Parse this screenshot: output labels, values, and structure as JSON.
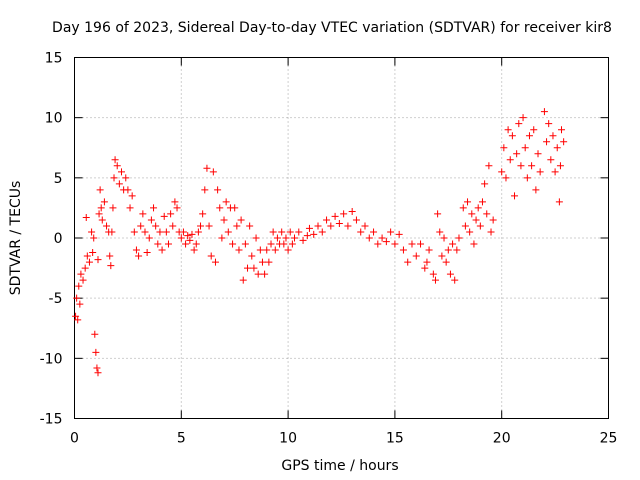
{
  "chart_data": {
    "type": "scatter",
    "title": "Day 196 of 2023, Sidereal Day-to-day VTEC variation (SDTVAR) for receiver kir8",
    "xlabel": "GPS time / hours",
    "ylabel": "SDTVAR / TECUs",
    "xlim": [
      0,
      25
    ],
    "ylim": [
      -15,
      15
    ],
    "xticks": [
      0,
      5,
      10,
      15,
      20,
      25
    ],
    "yticks": [
      -15,
      -10,
      -5,
      0,
      5,
      10,
      15
    ],
    "grid": true,
    "marker": "+",
    "color": "#ff0000",
    "series": [
      {
        "name": "kir8",
        "points": [
          [
            0.05,
            -6.5
          ],
          [
            0.1,
            -5.0
          ],
          [
            0.15,
            -6.8
          ],
          [
            0.2,
            -4.0
          ],
          [
            0.25,
            -5.5
          ],
          [
            0.3,
            -3.0
          ],
          [
            0.4,
            -3.5
          ],
          [
            0.5,
            -2.5
          ],
          [
            0.55,
            1.7
          ],
          [
            0.6,
            -1.5
          ],
          [
            0.7,
            -2.0
          ],
          [
            0.8,
            0.5
          ],
          [
            0.85,
            -1.2
          ],
          [
            0.9,
            0.0
          ],
          [
            0.95,
            -8.0
          ],
          [
            1.0,
            -9.5
          ],
          [
            1.05,
            -10.8
          ],
          [
            1.1,
            -11.2
          ],
          [
            1.1,
            -1.8
          ],
          [
            1.15,
            2.0
          ],
          [
            1.2,
            4.0
          ],
          [
            1.25,
            2.5
          ],
          [
            1.3,
            1.5
          ],
          [
            1.4,
            3.0
          ],
          [
            1.5,
            1.0
          ],
          [
            1.6,
            0.5
          ],
          [
            1.65,
            -1.5
          ],
          [
            1.7,
            -2.3
          ],
          [
            1.75,
            0.5
          ],
          [
            1.8,
            2.5
          ],
          [
            1.85,
            5.0
          ],
          [
            1.9,
            6.5
          ],
          [
            2.0,
            6.0
          ],
          [
            2.1,
            4.5
          ],
          [
            2.2,
            5.5
          ],
          [
            2.3,
            4.0
          ],
          [
            2.4,
            5.0
          ],
          [
            2.5,
            4.0
          ],
          [
            2.6,
            2.5
          ],
          [
            2.7,
            3.5
          ],
          [
            2.8,
            0.5
          ],
          [
            2.9,
            -1.0
          ],
          [
            3.0,
            -1.5
          ],
          [
            3.1,
            1.0
          ],
          [
            3.2,
            2.0
          ],
          [
            3.3,
            0.5
          ],
          [
            3.4,
            -1.2
          ],
          [
            3.5,
            0.0
          ],
          [
            3.6,
            1.5
          ],
          [
            3.7,
            2.5
          ],
          [
            3.8,
            1.0
          ],
          [
            3.9,
            -0.5
          ],
          [
            4.0,
            0.5
          ],
          [
            4.1,
            -1.0
          ],
          [
            4.2,
            1.8
          ],
          [
            4.3,
            0.5
          ],
          [
            4.4,
            -0.5
          ],
          [
            4.5,
            2.0
          ],
          [
            4.6,
            1.0
          ],
          [
            4.7,
            3.0
          ],
          [
            4.8,
            2.5
          ],
          [
            4.9,
            0.5
          ],
          [
            5.0,
            0.0
          ],
          [
            5.1,
            0.5
          ],
          [
            5.2,
            -0.5
          ],
          [
            5.3,
            0.2
          ],
          [
            5.4,
            -0.2
          ],
          [
            5.5,
            0.3
          ],
          [
            5.6,
            -1.0
          ],
          [
            5.7,
            -0.5
          ],
          [
            5.8,
            0.5
          ],
          [
            5.9,
            1.0
          ],
          [
            6.0,
            2.0
          ],
          [
            6.1,
            4.0
          ],
          [
            6.2,
            5.8
          ],
          [
            6.3,
            1.0
          ],
          [
            6.4,
            -1.5
          ],
          [
            6.5,
            5.5
          ],
          [
            6.6,
            -2.0
          ],
          [
            6.7,
            4.0
          ],
          [
            6.8,
            2.5
          ],
          [
            6.9,
            0.0
          ],
          [
            7.0,
            1.5
          ],
          [
            7.1,
            3.0
          ],
          [
            7.2,
            0.5
          ],
          [
            7.3,
            2.5
          ],
          [
            7.4,
            -0.5
          ],
          [
            7.5,
            2.5
          ],
          [
            7.6,
            1.0
          ],
          [
            7.7,
            -1.0
          ],
          [
            7.8,
            1.5
          ],
          [
            7.9,
            -3.5
          ],
          [
            8.0,
            -0.5
          ],
          [
            8.1,
            -2.5
          ],
          [
            8.2,
            1.0
          ],
          [
            8.3,
            -1.5
          ],
          [
            8.4,
            -2.5
          ],
          [
            8.5,
            0.0
          ],
          [
            8.6,
            -3.0
          ],
          [
            8.7,
            -1.0
          ],
          [
            8.8,
            -2.0
          ],
          [
            8.9,
            -3.0
          ],
          [
            9.0,
            -1.0
          ],
          [
            9.1,
            -2.0
          ],
          [
            9.2,
            -0.5
          ],
          [
            9.3,
            0.5
          ],
          [
            9.4,
            -1.0
          ],
          [
            9.5,
            0.0
          ],
          [
            9.6,
            -0.5
          ],
          [
            9.7,
            0.5
          ],
          [
            9.8,
            -0.5
          ],
          [
            9.9,
            0.0
          ],
          [
            10.0,
            -1.0
          ],
          [
            10.1,
            0.5
          ],
          [
            10.2,
            -0.5
          ],
          [
            10.3,
            0.0
          ],
          [
            10.5,
            0.5
          ],
          [
            10.7,
            -0.2
          ],
          [
            10.9,
            0.2
          ],
          [
            11.0,
            0.8
          ],
          [
            11.2,
            0.3
          ],
          [
            11.4,
            1.0
          ],
          [
            11.6,
            0.5
          ],
          [
            11.8,
            1.5
          ],
          [
            12.0,
            1.0
          ],
          [
            12.2,
            1.8
          ],
          [
            12.4,
            1.2
          ],
          [
            12.6,
            2.0
          ],
          [
            12.8,
            1.0
          ],
          [
            13.0,
            2.2
          ],
          [
            13.2,
            1.5
          ],
          [
            13.4,
            0.5
          ],
          [
            13.6,
            1.0
          ],
          [
            13.8,
            0.0
          ],
          [
            14.0,
            0.5
          ],
          [
            14.2,
            -0.5
          ],
          [
            14.4,
            0.0
          ],
          [
            14.6,
            -0.3
          ],
          [
            14.8,
            0.5
          ],
          [
            15.0,
            -0.5
          ],
          [
            15.2,
            0.3
          ],
          [
            15.4,
            -1.0
          ],
          [
            15.6,
            -2.0
          ],
          [
            15.8,
            -0.5
          ],
          [
            16.0,
            -1.5
          ],
          [
            16.2,
            -0.5
          ],
          [
            16.4,
            -2.5
          ],
          [
            16.5,
            -2.0
          ],
          [
            16.6,
            -1.0
          ],
          [
            16.8,
            -3.0
          ],
          [
            16.9,
            -3.5
          ],
          [
            17.0,
            2.0
          ],
          [
            17.1,
            0.5
          ],
          [
            17.2,
            -1.5
          ],
          [
            17.3,
            0.0
          ],
          [
            17.4,
            -2.0
          ],
          [
            17.5,
            -1.0
          ],
          [
            17.6,
            -3.0
          ],
          [
            17.7,
            -0.5
          ],
          [
            17.8,
            -3.5
          ],
          [
            17.9,
            -1.0
          ],
          [
            18.0,
            0.0
          ],
          [
            18.2,
            2.5
          ],
          [
            18.3,
            1.0
          ],
          [
            18.4,
            3.0
          ],
          [
            18.5,
            0.5
          ],
          [
            18.6,
            2.0
          ],
          [
            18.7,
            -0.5
          ],
          [
            18.8,
            1.5
          ],
          [
            18.9,
            2.5
          ],
          [
            19.0,
            1.0
          ],
          [
            19.1,
            3.0
          ],
          [
            19.2,
            4.5
          ],
          [
            19.3,
            2.0
          ],
          [
            19.4,
            6.0
          ],
          [
            19.5,
            0.5
          ],
          [
            19.6,
            1.5
          ],
          [
            20.0,
            5.5
          ],
          [
            20.1,
            7.5
          ],
          [
            20.2,
            5.0
          ],
          [
            20.3,
            9.0
          ],
          [
            20.4,
            6.5
          ],
          [
            20.5,
            8.5
          ],
          [
            20.6,
            3.5
          ],
          [
            20.7,
            7.0
          ],
          [
            20.8,
            9.5
          ],
          [
            20.9,
            6.0
          ],
          [
            21.0,
            10.0
          ],
          [
            21.1,
            7.5
          ],
          [
            21.2,
            5.0
          ],
          [
            21.3,
            8.5
          ],
          [
            21.4,
            6.0
          ],
          [
            21.5,
            9.0
          ],
          [
            21.6,
            4.0
          ],
          [
            21.7,
            7.0
          ],
          [
            21.8,
            5.5
          ],
          [
            22.0,
            10.5
          ],
          [
            22.1,
            8.0
          ],
          [
            22.2,
            9.5
          ],
          [
            22.3,
            6.5
          ],
          [
            22.4,
            8.5
          ],
          [
            22.5,
            5.5
          ],
          [
            22.6,
            7.5
          ],
          [
            22.7,
            3.0
          ],
          [
            22.75,
            6.0
          ],
          [
            22.8,
            9.0
          ],
          [
            22.9,
            8.0
          ]
        ]
      }
    ]
  }
}
